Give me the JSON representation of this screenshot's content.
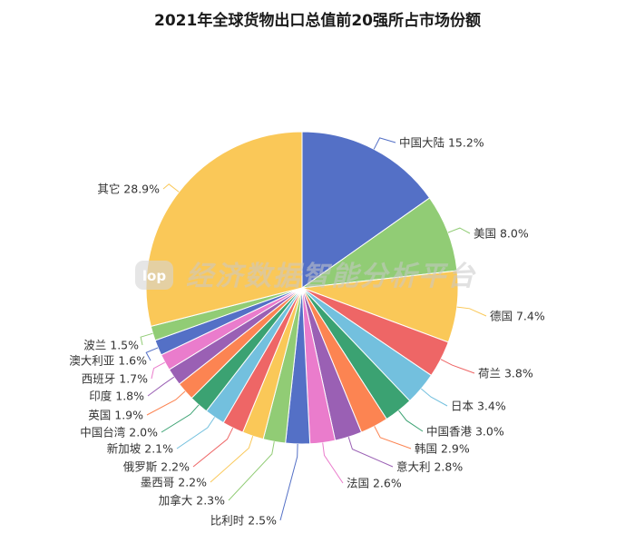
{
  "chart_data": {
    "type": "pie",
    "title": "2021年全球货物出口总值前20强所占市场份额",
    "unit": "%",
    "slices": [
      {
        "label": "中国大陆",
        "value": 15.2,
        "color": "#5470c6"
      },
      {
        "label": "美国",
        "value": 8.0,
        "color": "#91cc75"
      },
      {
        "label": "德国",
        "value": 7.4,
        "color": "#fac858"
      },
      {
        "label": "荷兰",
        "value": 3.8,
        "color": "#ee6666"
      },
      {
        "label": "日本",
        "value": 3.4,
        "color": "#73c0de"
      },
      {
        "label": "中国香港",
        "value": 3.0,
        "color": "#3ba272"
      },
      {
        "label": "韩国",
        "value": 2.9,
        "color": "#fc8452"
      },
      {
        "label": "意大利",
        "value": 2.8,
        "color": "#9a60b4"
      },
      {
        "label": "法国",
        "value": 2.6,
        "color": "#ea7ccc"
      },
      {
        "label": "比利时",
        "value": 2.5,
        "color": "#5470c6"
      },
      {
        "label": "加拿大",
        "value": 2.3,
        "color": "#91cc75"
      },
      {
        "label": "墨西哥",
        "value": 2.2,
        "color": "#fac858"
      },
      {
        "label": "俄罗斯",
        "value": 2.2,
        "color": "#ee6666"
      },
      {
        "label": "新加坡",
        "value": 2.1,
        "color": "#73c0de"
      },
      {
        "label": "中国台湾",
        "value": 2.0,
        "color": "#3ba272"
      },
      {
        "label": "英国",
        "value": 1.9,
        "color": "#fc8452"
      },
      {
        "label": "印度",
        "value": 1.8,
        "color": "#9a60b4"
      },
      {
        "label": "西班牙",
        "value": 1.7,
        "color": "#ea7ccc"
      },
      {
        "label": "澳大利亚",
        "value": 1.6,
        "color": "#5470c6"
      },
      {
        "label": "波兰",
        "value": 1.5,
        "color": "#91cc75"
      },
      {
        "label": "其它",
        "value": 28.9,
        "color": "#fac858"
      }
    ]
  },
  "watermark": {
    "logo_text": "lop",
    "text": "经济数据智能分析平台"
  }
}
